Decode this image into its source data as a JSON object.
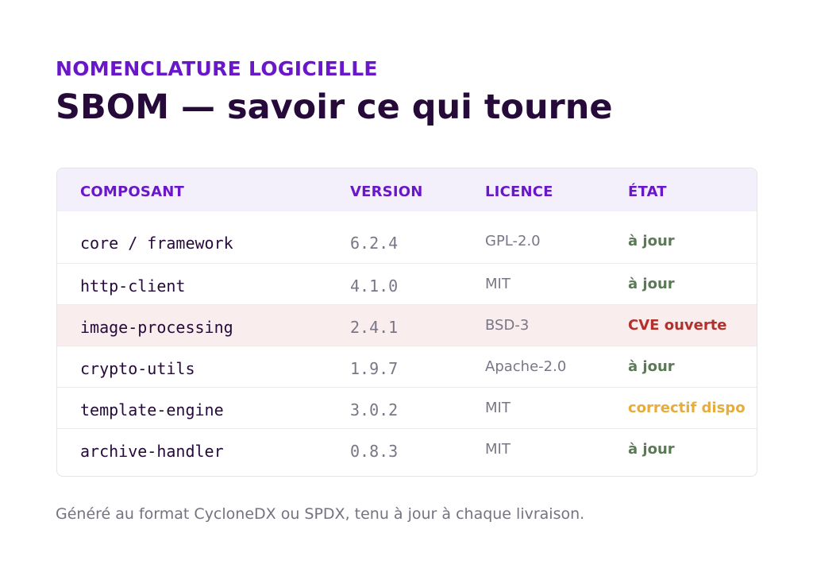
{
  "header": {
    "eyebrow": "NOMENCLATURE LOGICIELLE",
    "title": "SBOM — savoir ce qui tourne"
  },
  "table": {
    "columns": [
      "COMPOSANT",
      "VERSION",
      "LICENCE",
      "ÉTAT"
    ],
    "rows": [
      {
        "component": "core / framework",
        "version": "6.2.4",
        "license": "GPL-2.0",
        "state": "à jour",
        "status": "ok"
      },
      {
        "component": "http-client",
        "version": "4.1.0",
        "license": "MIT",
        "state": "à jour",
        "status": "ok"
      },
      {
        "component": "image-processing",
        "version": "2.4.1",
        "license": "BSD-3",
        "state": "CVE ouverte",
        "status": "alert"
      },
      {
        "component": "crypto-utils",
        "version": "1.9.7",
        "license": "Apache-2.0",
        "state": "à jour",
        "status": "ok"
      },
      {
        "component": "template-engine",
        "version": "3.0.2",
        "license": "MIT",
        "state": "correctif dispo",
        "status": "warn"
      },
      {
        "component": "archive-handler",
        "version": "0.8.3",
        "license": "MIT",
        "state": "à jour",
        "status": "ok"
      }
    ]
  },
  "footer": {
    "note": "Généré au format CycloneDX ou SPDX, tenu à jour à chaque livraison."
  },
  "colors": {
    "accent": "#6a16c9",
    "title": "#250a3a",
    "ok": "#5a7a55",
    "alert": "#b3302b",
    "warn": "#e6ad3c",
    "alert_row_bg": "#f9eded"
  }
}
